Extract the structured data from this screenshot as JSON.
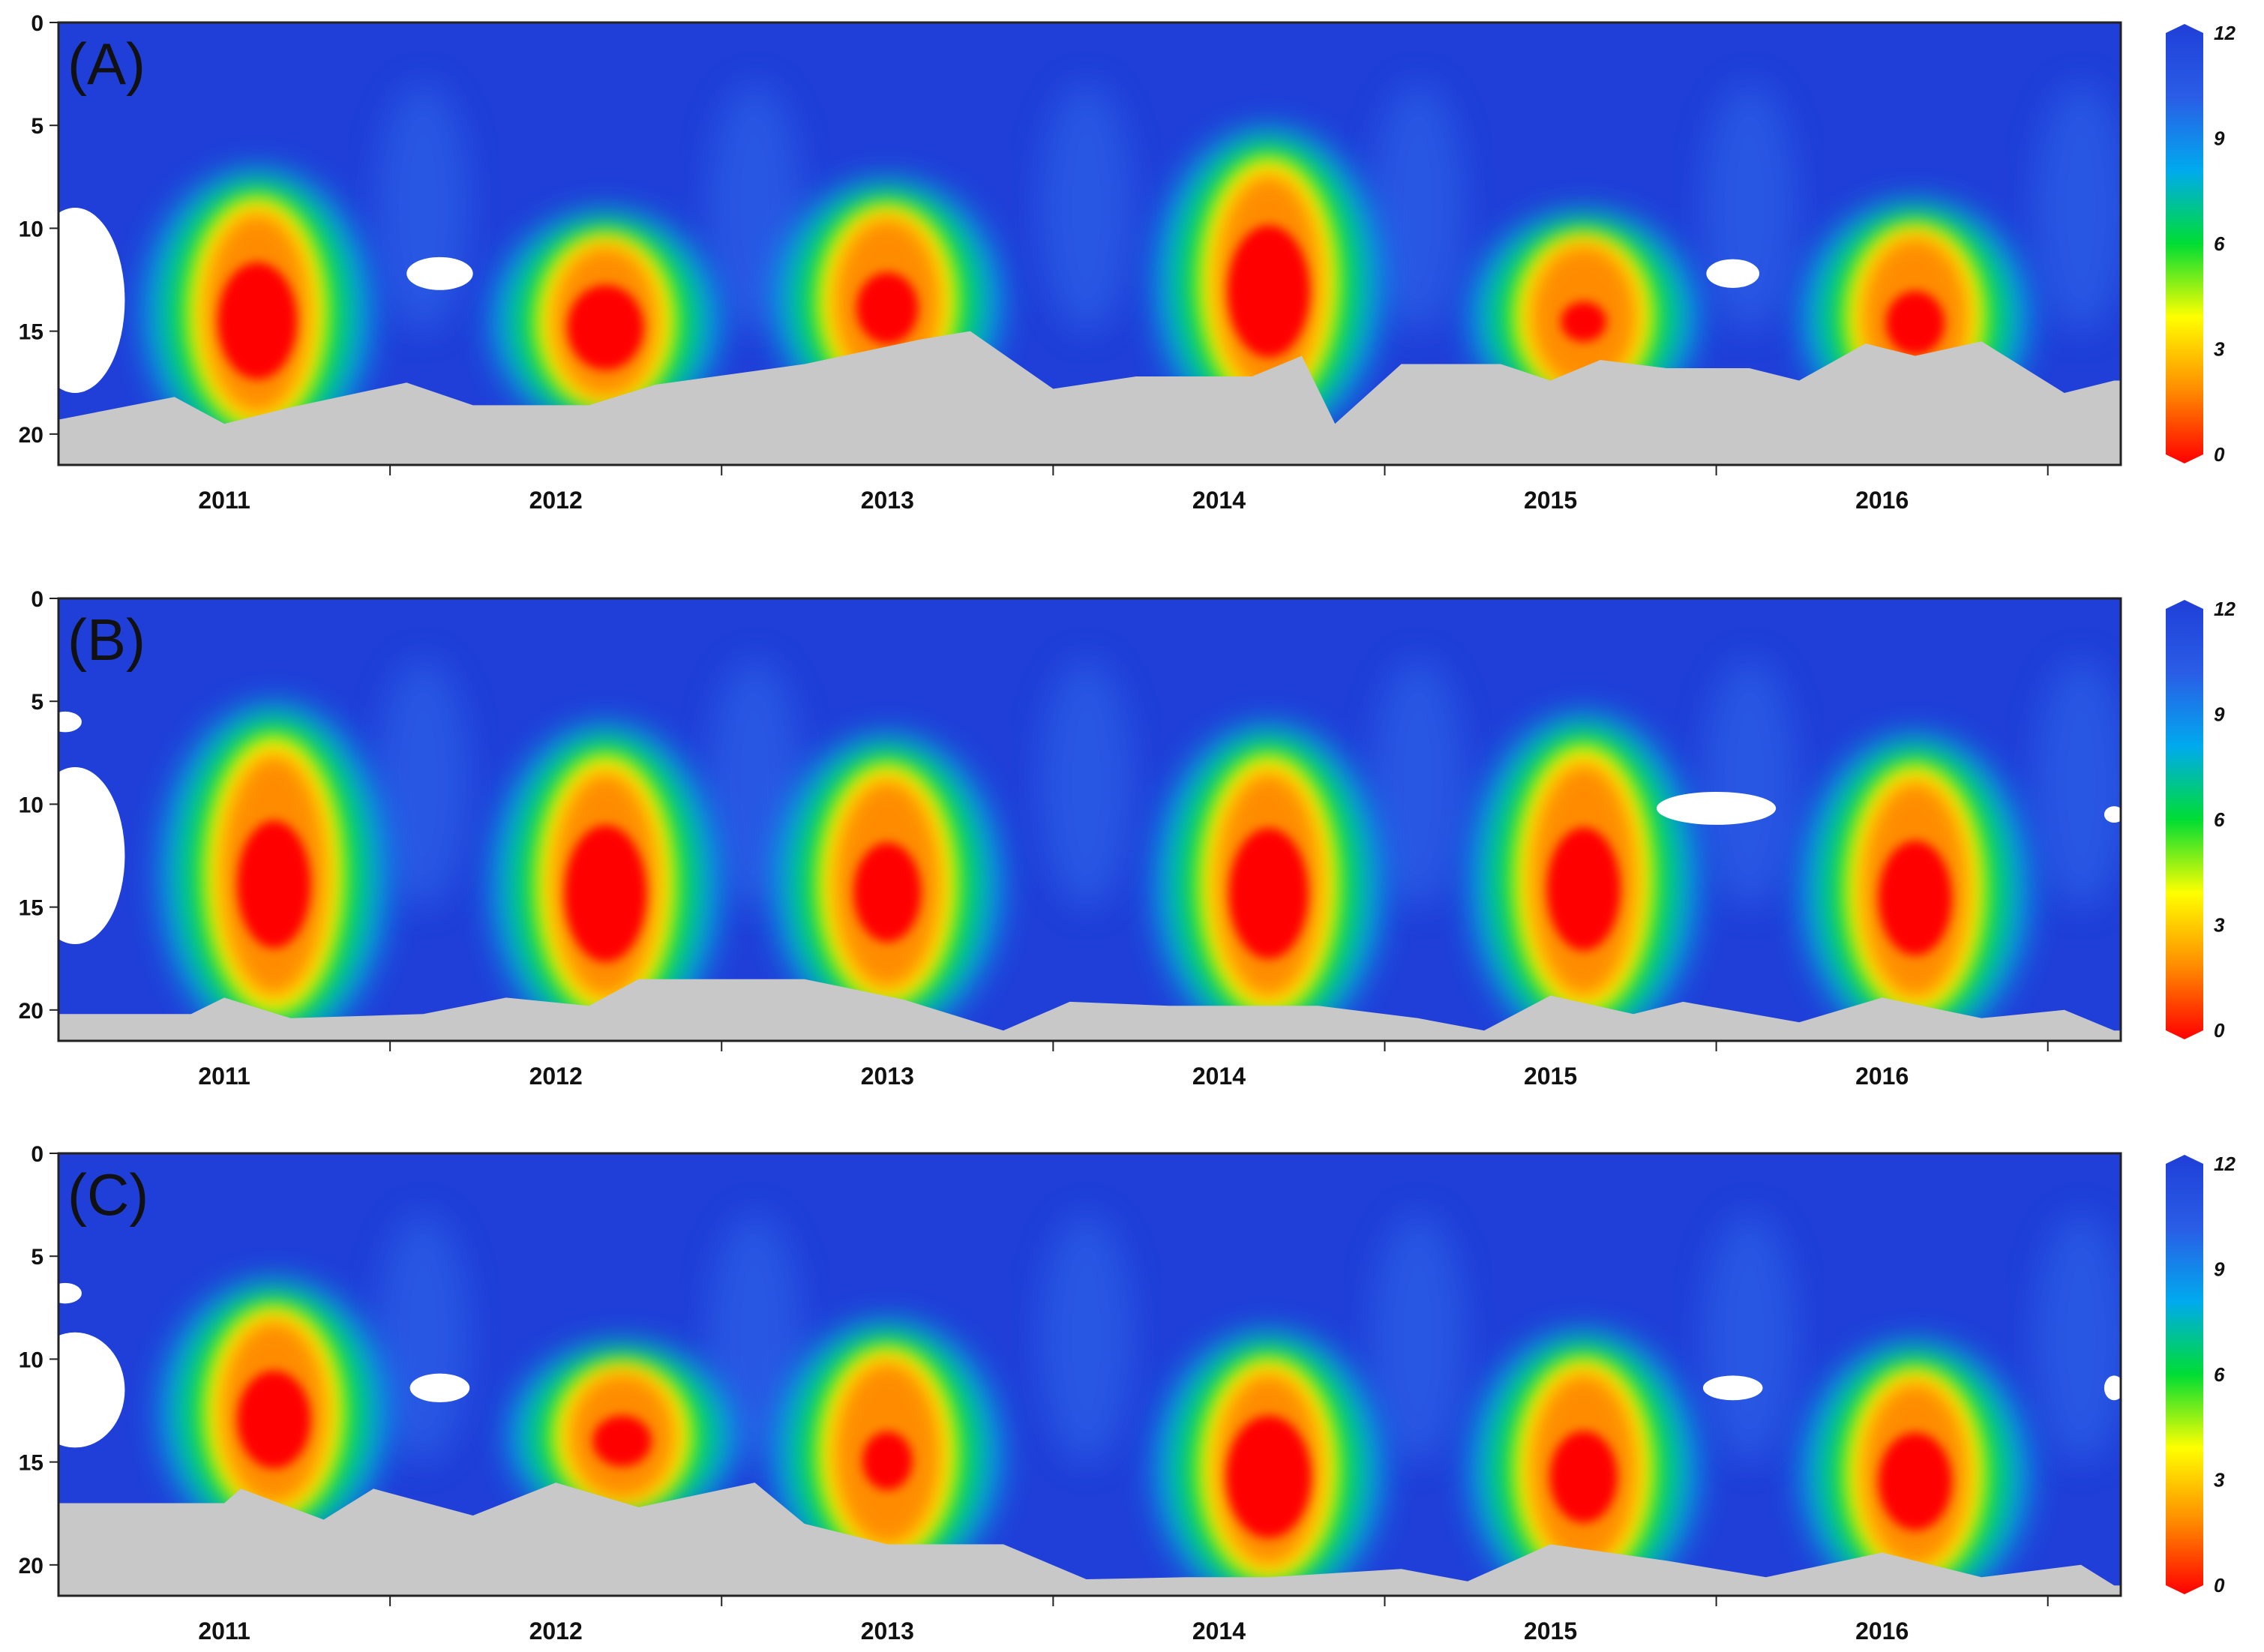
{
  "colors": {
    "scale": [
      "#ff0000",
      "#ff8c00",
      "#ffff00",
      "#00dd33",
      "#00aaee",
      "#2a5de6",
      "#1f3fd8"
    ],
    "bottom_mask": "#c8c8c8",
    "frame": "#222222"
  },
  "chart_data": [
    {
      "type": "heatmap",
      "panel_label": "(A)",
      "x_categories": [
        "2011",
        "2012",
        "2013",
        "2014",
        "2015",
        "2016"
      ],
      "y_ticks": [
        "0",
        "5",
        "10",
        "15",
        "20"
      ],
      "y_range": [
        0,
        21.5
      ],
      "y_inverted": true,
      "colorbar": {
        "ticks": [
          "12",
          "9",
          "6",
          "3",
          "0"
        ],
        "range": [
          0,
          12
        ]
      },
      "low_value_events": [
        {
          "x_center": 2011.1,
          "top": 7.5,
          "bottom": 20.0,
          "core": 0.8
        },
        {
          "x_center": 2012.15,
          "top": 9.5,
          "bottom": 19.0,
          "core": 0.9
        },
        {
          "x_center": 2013.0,
          "top": 8.0,
          "bottom": 18.5,
          "core": 1.4
        },
        {
          "x_center": 2014.15,
          "top": 5.5,
          "bottom": 19.0,
          "core": 0.7
        },
        {
          "x_center": 2015.1,
          "top": 9.5,
          "bottom": 18.5,
          "core": 2.0
        },
        {
          "x_center": 2016.1,
          "top": 9.0,
          "bottom": 19.0,
          "core": 1.5
        }
      ],
      "bottom_depth": [
        [
          2010.5,
          19.3
        ],
        [
          2010.85,
          18.2
        ],
        [
          2011.0,
          19.5
        ],
        [
          2011.2,
          18.7
        ],
        [
          2011.55,
          17.5
        ],
        [
          2011.75,
          18.6
        ],
        [
          2012.1,
          18.6
        ],
        [
          2012.3,
          17.6
        ],
        [
          2012.75,
          16.6
        ],
        [
          2013.1,
          15.4
        ],
        [
          2013.25,
          15.0
        ],
        [
          2013.5,
          17.8
        ],
        [
          2013.75,
          17.2
        ],
        [
          2014.1,
          17.2
        ],
        [
          2014.25,
          16.2
        ],
        [
          2014.35,
          19.5
        ],
        [
          2014.55,
          16.6
        ],
        [
          2014.85,
          16.6
        ],
        [
          2015.0,
          17.4
        ],
        [
          2015.15,
          16.4
        ],
        [
          2015.35,
          16.8
        ],
        [
          2015.6,
          16.8
        ],
        [
          2015.75,
          17.4
        ],
        [
          2015.95,
          15.6
        ],
        [
          2016.1,
          16.2
        ],
        [
          2016.3,
          15.5
        ],
        [
          2016.55,
          18.0
        ],
        [
          2016.7,
          17.4
        ]
      ],
      "missing_data": [
        {
          "x": 2010.55,
          "y": 13.5,
          "rx": 0.15,
          "ry": 4.5
        },
        {
          "x": 2011.65,
          "y": 12.2,
          "rx": 0.1,
          "ry": 0.8
        },
        {
          "x": 2015.55,
          "y": 12.2,
          "rx": 0.08,
          "ry": 0.7
        }
      ]
    },
    {
      "type": "heatmap",
      "panel_label": "(B)",
      "x_categories": [
        "2011",
        "2012",
        "2013",
        "2014",
        "2015",
        "2016"
      ],
      "y_ticks": [
        "0",
        "5",
        "10",
        "15",
        "20"
      ],
      "y_range": [
        0,
        21.5
      ],
      "y_inverted": true,
      "colorbar": {
        "ticks": [
          "12",
          "9",
          "6",
          "3",
          "0"
        ],
        "range": [
          0,
          12
        ]
      },
      "low_value_events": [
        {
          "x_center": 2011.15,
          "top": 5.5,
          "bottom": 20.5,
          "core": 1.0
        },
        {
          "x_center": 2012.15,
          "top": 6.5,
          "bottom": 20.5,
          "core": 0.7
        },
        {
          "x_center": 2013.0,
          "top": 7.0,
          "bottom": 20.0,
          "core": 1.2
        },
        {
          "x_center": 2014.15,
          "top": 6.5,
          "bottom": 20.5,
          "core": 0.8
        },
        {
          "x_center": 2015.1,
          "top": 6.0,
          "bottom": 20.5,
          "core": 1.0
        },
        {
          "x_center": 2016.1,
          "top": 7.0,
          "bottom": 20.5,
          "core": 1.0
        }
      ],
      "bottom_depth": [
        [
          2010.5,
          20.2
        ],
        [
          2010.9,
          20.2
        ],
        [
          2011.0,
          19.4
        ],
        [
          2011.2,
          20.4
        ],
        [
          2011.6,
          20.2
        ],
        [
          2011.85,
          19.4
        ],
        [
          2012.1,
          19.8
        ],
        [
          2012.25,
          18.5
        ],
        [
          2012.75,
          18.5
        ],
        [
          2013.05,
          19.5
        ],
        [
          2013.35,
          21.0
        ],
        [
          2013.55,
          19.6
        ],
        [
          2013.85,
          19.8
        ],
        [
          2014.3,
          19.8
        ],
        [
          2014.6,
          20.4
        ],
        [
          2014.8,
          21.0
        ],
        [
          2015.0,
          19.3
        ],
        [
          2015.25,
          20.2
        ],
        [
          2015.4,
          19.6
        ],
        [
          2015.75,
          20.6
        ],
        [
          2016.0,
          19.4
        ],
        [
          2016.3,
          20.4
        ],
        [
          2016.55,
          20.0
        ],
        [
          2016.7,
          21.0
        ]
      ],
      "missing_data": [
        {
          "x": 2010.55,
          "y": 12.5,
          "rx": 0.15,
          "ry": 4.3
        },
        {
          "x": 2010.52,
          "y": 6.0,
          "rx": 0.05,
          "ry": 0.5
        },
        {
          "x": 2015.5,
          "y": 10.2,
          "rx": 0.18,
          "ry": 0.8
        },
        {
          "x": 2016.7,
          "y": 10.5,
          "rx": 0.03,
          "ry": 0.4
        }
      ]
    },
    {
      "type": "heatmap",
      "panel_label": "(C)",
      "x_categories": [
        "2011",
        "2012",
        "2013",
        "2014",
        "2015",
        "2016"
      ],
      "y_ticks": [
        "0",
        "5",
        "10",
        "15",
        "20"
      ],
      "y_range": [
        0,
        21.5
      ],
      "y_inverted": true,
      "colorbar": {
        "ticks": [
          "12",
          "9",
          "6",
          "3",
          "0"
        ],
        "range": [
          0,
          12
        ]
      },
      "low_value_events": [
        {
          "x_center": 2011.15,
          "top": 6.5,
          "bottom": 18.0,
          "core": 1.0
        },
        {
          "x_center": 2012.2,
          "top": 9.5,
          "bottom": 17.5,
          "core": 1.5
        },
        {
          "x_center": 2013.0,
          "top": 8.5,
          "bottom": 20.0,
          "core": 1.8
        },
        {
          "x_center": 2014.15,
          "top": 9.0,
          "bottom": 21.0,
          "core": 0.6
        },
        {
          "x_center": 2015.1,
          "top": 9.0,
          "bottom": 21.0,
          "core": 1.2
        },
        {
          "x_center": 2016.1,
          "top": 9.5,
          "bottom": 21.0,
          "core": 1.0
        }
      ],
      "bottom_depth": [
        [
          2010.5,
          17.0
        ],
        [
          2011.0,
          17.0
        ],
        [
          2011.05,
          16.3
        ],
        [
          2011.3,
          17.8
        ],
        [
          2011.45,
          16.3
        ],
        [
          2011.75,
          17.6
        ],
        [
          2012.0,
          16.0
        ],
        [
          2012.25,
          17.2
        ],
        [
          2012.6,
          16.0
        ],
        [
          2012.75,
          18.0
        ],
        [
          2013.0,
          19.0
        ],
        [
          2013.35,
          19.0
        ],
        [
          2013.6,
          20.7
        ],
        [
          2013.9,
          20.6
        ],
        [
          2014.15,
          20.6
        ],
        [
          2014.55,
          20.2
        ],
        [
          2014.75,
          20.8
        ],
        [
          2015.0,
          19.0
        ],
        [
          2015.35,
          19.8
        ],
        [
          2015.65,
          20.6
        ],
        [
          2016.0,
          19.4
        ],
        [
          2016.3,
          20.6
        ],
        [
          2016.6,
          20.0
        ],
        [
          2016.7,
          21.0
        ]
      ],
      "missing_data": [
        {
          "x": 2010.55,
          "y": 11.5,
          "rx": 0.15,
          "ry": 2.8
        },
        {
          "x": 2010.52,
          "y": 6.8,
          "rx": 0.05,
          "ry": 0.5
        },
        {
          "x": 2011.65,
          "y": 11.4,
          "rx": 0.09,
          "ry": 0.7
        },
        {
          "x": 2015.55,
          "y": 11.4,
          "rx": 0.09,
          "ry": 0.6
        },
        {
          "x": 2016.7,
          "y": 11.4,
          "rx": 0.03,
          "ry": 0.6
        }
      ]
    }
  ]
}
